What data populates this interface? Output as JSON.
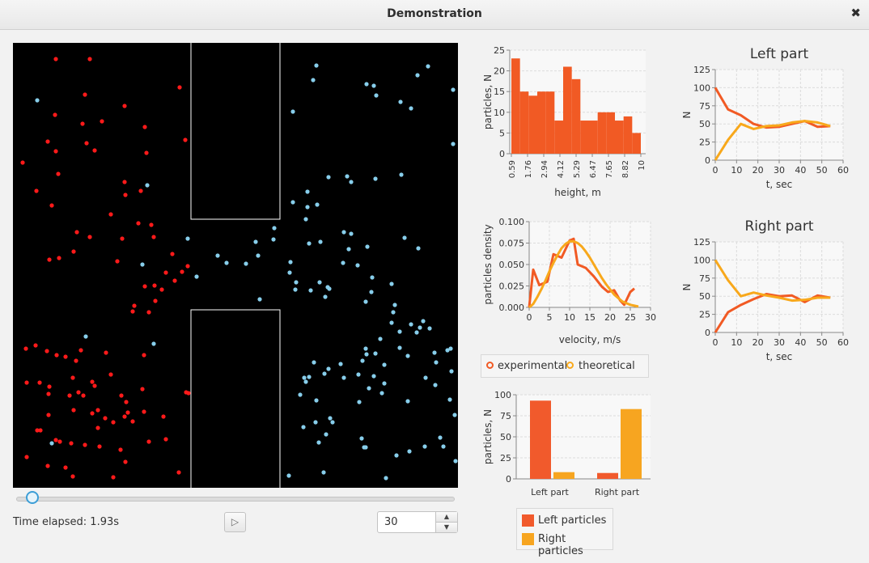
{
  "window": {
    "title": "Demonstration",
    "close_icon": "close-icon"
  },
  "controls": {
    "time_elapsed": "Time elapsed: 1.93s",
    "play_icon": "play-icon",
    "play_glyph": "▷",
    "spinner_value": "30",
    "slider_value_fraction": 0.04
  },
  "colors": {
    "left_particle": "#ff1a1a",
    "right_particle": "#87ceeb",
    "experimental": "#f15a24",
    "theoretical": "#f8a81b",
    "left_particles_bar": "#f15a2c",
    "right_particles_bar": "#f7a520",
    "chamber_bg": "#000000",
    "wall": "#ffffff"
  },
  "legend_velocity": [
    "experimental",
    "theoretical"
  ],
  "legend_bars": [
    "Left particles",
    "Right particles"
  ],
  "chart_data": [
    {
      "id": "height",
      "type": "bar",
      "xlabel": "height, m",
      "ylabel": "particles, N",
      "ylim": [
        0,
        25
      ],
      "yticks": [
        0,
        5,
        10,
        15,
        20,
        25
      ],
      "xtick_labels": [
        "0.59",
        "1.76",
        "2.94",
        "4.12",
        "5.29",
        "6.47",
        "7.65",
        "8.82",
        "10"
      ],
      "values": [
        23,
        15,
        14,
        15,
        15,
        8,
        21,
        18,
        8,
        8,
        10,
        10,
        8,
        9,
        5
      ]
    },
    {
      "id": "velocity",
      "type": "line",
      "xlabel": "velocity, m/s",
      "ylabel": "particles density",
      "xlim": [
        0,
        30
      ],
      "ylim": [
        0,
        0.1
      ],
      "xticks": [
        "0",
        "5",
        "10",
        "15",
        "20",
        "25",
        "30"
      ],
      "yticks": [
        "0.000",
        "0.025",
        "0.050",
        "0.075",
        "0.100"
      ],
      "series": [
        {
          "name": "experimental",
          "x": [
            0,
            1,
            2.5,
            4.5,
            6,
            8,
            10,
            11,
            12,
            14,
            16,
            18,
            19.5,
            21,
            22.5,
            23.5,
            25,
            26
          ],
          "y": [
            0,
            0.044,
            0.026,
            0.03,
            0.062,
            0.058,
            0.078,
            0.08,
            0.05,
            0.046,
            0.036,
            0.024,
            0.018,
            0.02,
            0.008,
            0.003,
            0.018,
            0.022
          ]
        },
        {
          "name": "theoretical",
          "x": [
            0,
            1,
            2,
            3,
            4,
            5,
            6,
            7,
            8,
            9,
            10,
            11,
            12,
            13,
            14,
            15,
            16,
            17,
            18,
            19,
            20,
            21,
            22,
            23,
            24,
            25,
            26,
            27
          ],
          "y": [
            0,
            0.004,
            0.012,
            0.021,
            0.031,
            0.042,
            0.052,
            0.061,
            0.069,
            0.074,
            0.077,
            0.077,
            0.075,
            0.071,
            0.065,
            0.058,
            0.05,
            0.042,
            0.034,
            0.027,
            0.021,
            0.015,
            0.011,
            0.007,
            0.005,
            0.003,
            0.002,
            0.001
          ]
        }
      ]
    },
    {
      "id": "counts",
      "type": "bar",
      "ylabel": "particles, N",
      "ylim": [
        0,
        100
      ],
      "yticks": [
        0,
        25,
        50,
        75,
        100
      ],
      "categories": [
        "Left part",
        "Right part"
      ],
      "series": [
        {
          "name": "Left particles",
          "values": [
            93,
            7
          ]
        },
        {
          "name": "Right particles",
          "values": [
            8,
            83
          ]
        }
      ]
    },
    {
      "id": "left_part",
      "type": "line",
      "title": "Left part",
      "xlabel": "t, sec",
      "ylabel": "N",
      "xlim": [
        0,
        60
      ],
      "ylim": [
        0,
        125
      ],
      "xticks": [
        0,
        10,
        20,
        30,
        40,
        50,
        60
      ],
      "yticks": [
        0,
        25,
        50,
        75,
        100,
        125
      ],
      "series": [
        {
          "x": [
            0,
            6,
            12,
            18,
            24,
            30,
            36,
            42,
            48,
            54
          ],
          "y": [
            100,
            70,
            62,
            50,
            45,
            46,
            50,
            54,
            46,
            47
          ]
        },
        {
          "x": [
            0,
            6,
            12,
            18,
            24,
            30,
            36,
            42,
            48,
            54
          ],
          "y": [
            0,
            28,
            50,
            43,
            47,
            48,
            52,
            54,
            52,
            47
          ]
        }
      ]
    },
    {
      "id": "right_part",
      "type": "line",
      "title": "Right part",
      "xlabel": "t, sec",
      "ylabel": "N",
      "xlim": [
        0,
        60
      ],
      "ylim": [
        0,
        125
      ],
      "xticks": [
        0,
        10,
        20,
        30,
        40,
        50,
        60
      ],
      "yticks": [
        0,
        25,
        50,
        75,
        100,
        125
      ],
      "series": [
        {
          "x": [
            0,
            6,
            12,
            18,
            24,
            30,
            36,
            42,
            48,
            54
          ],
          "y": [
            0,
            28,
            38,
            46,
            53,
            50,
            51,
            42,
            51,
            48
          ]
        },
        {
          "x": [
            0,
            6,
            12,
            18,
            24,
            30,
            36,
            42,
            48,
            54
          ],
          "y": [
            100,
            72,
            50,
            55,
            51,
            48,
            44,
            45,
            48,
            48
          ]
        }
      ]
    }
  ]
}
